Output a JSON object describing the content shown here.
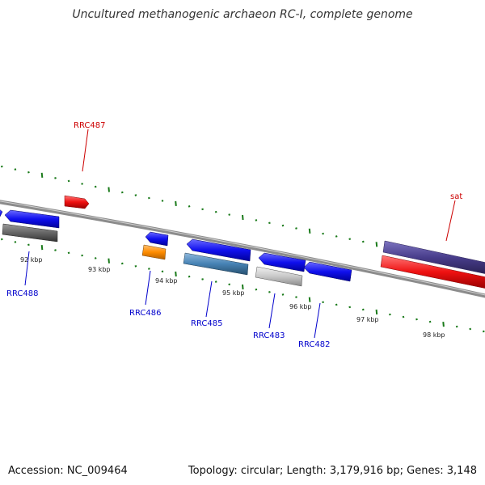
{
  "title": "Uncultured methanogenic archaeon RC-I, complete genome",
  "footer": {
    "accession": "Accession: NC_009464",
    "summary": "Topology: circular; Length: 3,179,916 bp; Genes: 3,148"
  },
  "kbp_labels": [
    "92 kbp",
    "93 kbp",
    "94 kbp",
    "95 kbp",
    "96 kbp",
    "97 kbp",
    "98 kbp"
  ],
  "gene_labels": [
    "RRC487",
    "sat",
    "RRC488",
    "RRC486",
    "RRC485",
    "RRC483",
    "RRC482"
  ],
  "colors": {
    "backbone": "#8c8c8c",
    "tick": "#1a7a1a",
    "label_red": "#cc0000",
    "label_blue": "#0000cc",
    "gene_blue": "#1010ee",
    "gene_red": "#ee1111",
    "gene_gray": "#666666",
    "gene_orange": "#ff8c00",
    "gene_steel": "#4682b4",
    "gene_lightgray": "#c8c8c8",
    "gene_slate": "#483d8b"
  }
}
